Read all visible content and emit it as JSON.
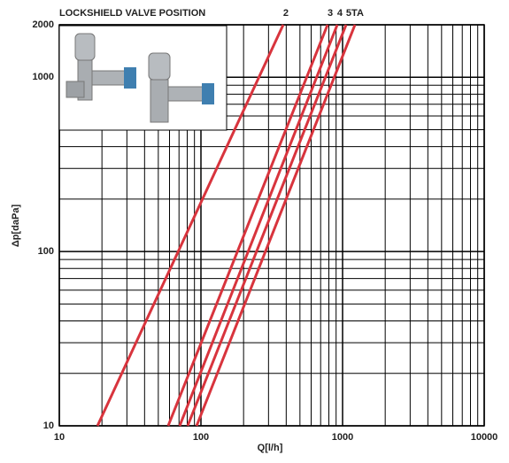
{
  "chart_data": {
    "type": "line",
    "title": "LOCKSHIELD VALVE POSITION",
    "xlabel": "Q[l/h]",
    "ylabel": "Δp[daPa]",
    "xscale": "log",
    "yscale": "log",
    "xlim": [
      10,
      10000
    ],
    "ylim": [
      10,
      2000
    ],
    "xticks": [
      10,
      100,
      1000,
      10000
    ],
    "yticks": [
      10,
      100,
      1000,
      2000
    ],
    "xgrid": [
      20,
      30,
      40,
      50,
      60,
      70,
      80,
      90,
      200,
      300,
      400,
      500,
      600,
      700,
      800,
      900,
      2000,
      3000,
      4000,
      5000,
      6000,
      7000,
      8000,
      9000
    ],
    "ygrid": [
      20,
      30,
      40,
      50,
      60,
      70,
      80,
      90,
      200,
      300,
      400,
      500,
      600,
      700,
      800,
      900
    ],
    "grid": true,
    "series": [
      {
        "name": "2",
        "color": "#d8343d",
        "x": [
          18.6,
          381
        ],
        "values": [
          10,
          2000
        ]
      },
      {
        "name": "3",
        "color": "#d8343d",
        "x": [
          58.7,
          783
        ],
        "values": [
          10,
          2000
        ]
      },
      {
        "name": "4",
        "color": "#d8343d",
        "x": [
          70.8,
          917
        ],
        "values": [
          10,
          2000
        ]
      },
      {
        "name": "5",
        "color": "#d8343d",
        "x": [
          80.6,
          1059
        ],
        "values": [
          10,
          2000
        ]
      },
      {
        "name": "TA",
        "color": "#d8343d",
        "x": [
          93.2,
          1223
        ],
        "values": [
          10,
          2000
        ]
      }
    ]
  }
}
